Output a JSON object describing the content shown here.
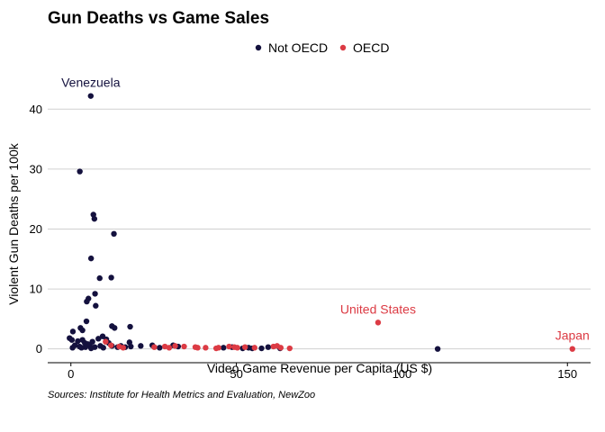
{
  "chart_data": {
    "type": "scatter",
    "title": "Gun Deaths vs Game Sales",
    "xlabel": "Video Game Revenue per Capita (US $)",
    "ylabel": "Violent Gun Deaths per 100k",
    "caption": "Sources: Institute for Health Metrics and Evaluation, NewZoo",
    "xlim": [
      -7,
      157
    ],
    "ylim": [
      -2.3,
      45
    ],
    "xticks": [
      0,
      50,
      100,
      150
    ],
    "yticks": [
      0,
      10,
      20,
      30,
      40
    ],
    "grid": "horizontal major",
    "legend_position": "top",
    "series": [
      {
        "name": "Not OECD",
        "color": "#14113e",
        "points": [
          [
            6,
            42.2
          ],
          [
            2.7,
            29.6
          ],
          [
            6.8,
            22.4
          ],
          [
            7.1,
            21.7
          ],
          [
            13,
            19.2
          ],
          [
            6.1,
            15.1
          ],
          [
            8.7,
            11.8
          ],
          [
            12.2,
            11.9
          ],
          [
            7.3,
            9.2
          ],
          [
            5.3,
            8.4
          ],
          [
            4.8,
            7.9
          ],
          [
            7.5,
            7.2
          ],
          [
            4.7,
            4.6
          ],
          [
            2.9,
            3.5
          ],
          [
            3.5,
            3.1
          ],
          [
            0.6,
            2.9
          ],
          [
            12.4,
            3.8
          ],
          [
            13.2,
            3.5
          ],
          [
            17.9,
            3.7
          ],
          [
            -0.4,
            1.8
          ],
          [
            0.3,
            1.5
          ],
          [
            2.1,
            1.3
          ],
          [
            3.5,
            1.5
          ],
          [
            4.2,
            1.0
          ],
          [
            5.1,
            0.8
          ],
          [
            6.5,
            1.2
          ],
          [
            8.3,
            1.7
          ],
          [
            9.6,
            2.1
          ],
          [
            10.7,
            1.6
          ],
          [
            11.4,
            1.0
          ],
          [
            1.2,
            0.6
          ],
          [
            2.6,
            0.4
          ],
          [
            4.4,
            0.3
          ],
          [
            5.7,
            0.6
          ],
          [
            7.2,
            0.3
          ],
          [
            8.9,
            0.5
          ],
          [
            9.8,
            0.2
          ],
          [
            12.4,
            0.5
          ],
          [
            14.1,
            0.3
          ],
          [
            15.1,
            0.5
          ],
          [
            16.4,
            0.3
          ],
          [
            17.7,
            1.1
          ],
          [
            18.1,
            0.4
          ],
          [
            21.1,
            0.5
          ],
          [
            24.6,
            0.6
          ],
          [
            26.8,
            0.2
          ],
          [
            30.9,
            0.6
          ],
          [
            32.4,
            0.4
          ],
          [
            46.1,
            0.2
          ],
          [
            48.7,
            0.3
          ],
          [
            51.9,
            0.1
          ],
          [
            53.7,
            0.2
          ],
          [
            54.8,
            0.1
          ],
          [
            57.6,
            0.1
          ],
          [
            59.6,
            0.3
          ],
          [
            63.2,
            0.1
          ],
          [
            110.8,
            0.0
          ],
          [
            0.5,
            0.2
          ],
          [
            3.2,
            0.2
          ],
          [
            6.1,
            0.1
          ]
        ]
      },
      {
        "name": "OECD",
        "color": "#dc3b44",
        "points": [
          [
            92.8,
            4.4
          ],
          [
            151.5,
            0.0
          ],
          [
            10.5,
            1.2
          ],
          [
            12.1,
            0.6
          ],
          [
            14.6,
            0.4
          ],
          [
            15.8,
            0.2
          ],
          [
            25.2,
            0.3
          ],
          [
            28.4,
            0.4
          ],
          [
            29.7,
            0.2
          ],
          [
            31.5,
            0.5
          ],
          [
            34.2,
            0.4
          ],
          [
            37.6,
            0.3
          ],
          [
            38.3,
            0.2
          ],
          [
            40.7,
            0.2
          ],
          [
            43.9,
            0.1
          ],
          [
            44.6,
            0.2
          ],
          [
            47.8,
            0.4
          ],
          [
            49.4,
            0.3
          ],
          [
            50.3,
            0.2
          ],
          [
            52.6,
            0.3
          ],
          [
            55.5,
            0.2
          ],
          [
            61.2,
            0.4
          ],
          [
            62.3,
            0.5
          ],
          [
            63.4,
            0.2
          ],
          [
            66.1,
            0.1
          ]
        ]
      }
    ],
    "annotations": [
      {
        "text": "Venezuela",
        "x": 6,
        "y": 42.2,
        "series": 0
      },
      {
        "text": "United States",
        "x": 92.8,
        "y": 4.4,
        "series": 1
      },
      {
        "text": "Japan",
        "x": 151.5,
        "y": 0.0,
        "series": 1
      }
    ]
  }
}
